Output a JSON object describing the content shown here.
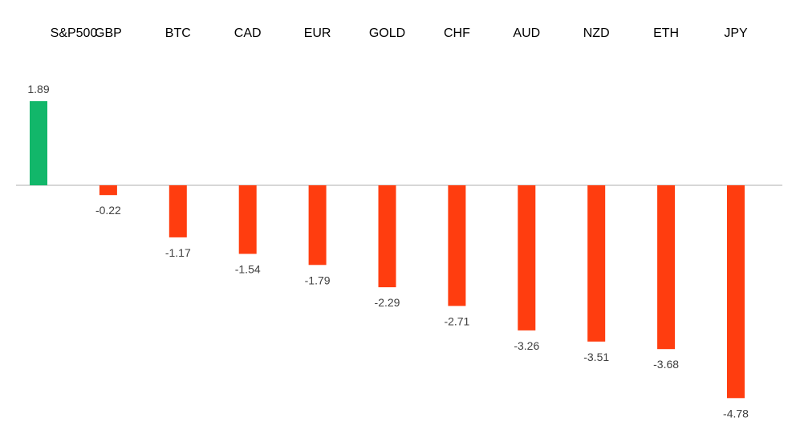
{
  "chart_data": {
    "type": "bar",
    "categories": [
      "S&P500",
      "GBP",
      "BTC",
      "CAD",
      "EUR",
      "GOLD",
      "CHF",
      "AUD",
      "NZD",
      "ETH",
      "JPY"
    ],
    "values": [
      1.89,
      -0.22,
      -1.17,
      -1.54,
      -1.79,
      -2.29,
      -2.71,
      -3.26,
      -3.51,
      -3.68,
      -4.78
    ],
    "value_labels": [
      "1.89",
      "-0.22",
      "-1.17",
      "-1.54",
      "-1.79",
      "-2.29",
      "-2.71",
      "-3.26",
      "-3.51",
      "-3.68",
      "-4.78"
    ],
    "title": "",
    "xlabel": "",
    "ylabel": "",
    "ylim": [
      -4.78,
      1.89
    ],
    "category_axis_position": "top",
    "grid": false,
    "legend": "none",
    "colors": {
      "positive": "#12b76a",
      "negative": "#ff3d0f",
      "axis": "#bfbfbf",
      "text": "#404040"
    }
  }
}
